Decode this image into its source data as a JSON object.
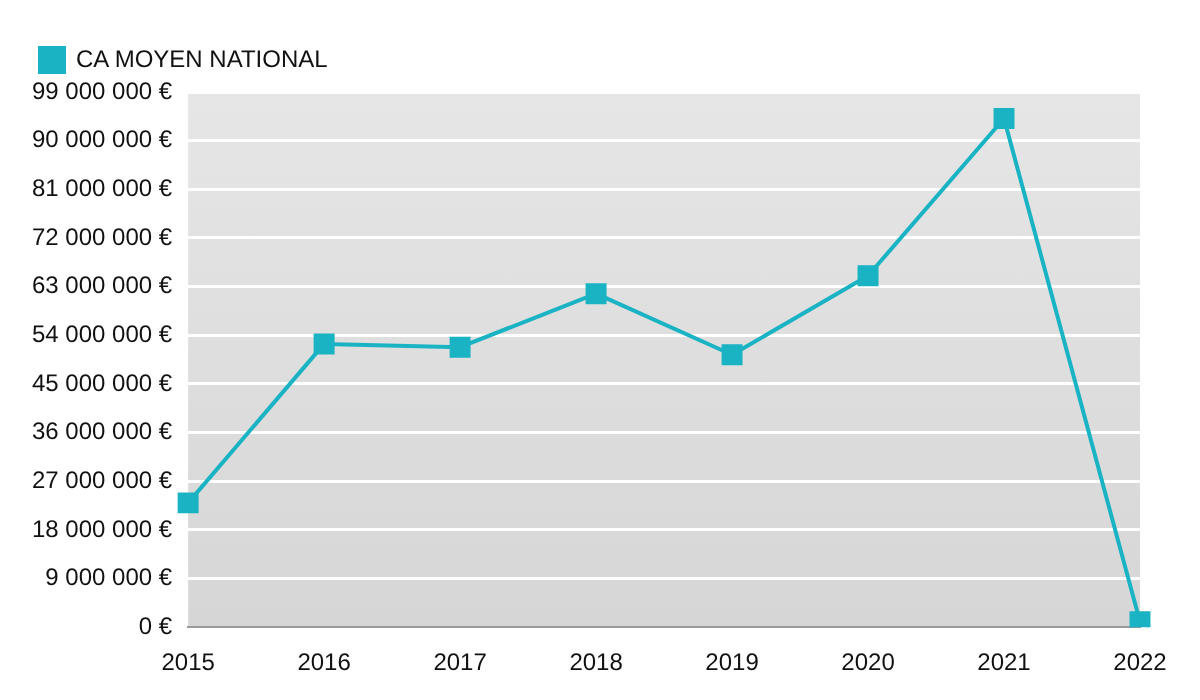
{
  "chart_data": {
    "type": "line",
    "categories": [
      "2015",
      "2016",
      "2017",
      "2018",
      "2019",
      "2020",
      "2021",
      "2022"
    ],
    "series": [
      {
        "name": "CA MOYEN NATIONAL",
        "color": "#1ab3c4",
        "values": [
          23000000,
          52400000,
          51800000,
          61700000,
          50400000,
          65000000,
          94100000,
          1000000
        ]
      }
    ],
    "ylim": [
      0,
      99000000
    ],
    "yticks": [
      {
        "value": 0,
        "label": "0 €"
      },
      {
        "value": 9000000,
        "label": "9 000 000 €"
      },
      {
        "value": 18000000,
        "label": "18 000 000 €"
      },
      {
        "value": 27000000,
        "label": "27 000 000 €"
      },
      {
        "value": 36000000,
        "label": "36 000 000 €"
      },
      {
        "value": 45000000,
        "label": "45 000 000 €"
      },
      {
        "value": 54000000,
        "label": "54 000 000 €"
      },
      {
        "value": 63000000,
        "label": "63 000 000 €"
      },
      {
        "value": 72000000,
        "label": "72 000 000 €"
      },
      {
        "value": 81000000,
        "label": "81 000 000 €"
      },
      {
        "value": 90000000,
        "label": "90 000 000 €"
      },
      {
        "value": 99000000,
        "label": "99 000 000 €"
      }
    ],
    "grid": "y",
    "legend": "top left",
    "marker": "square",
    "line_style": "solid"
  }
}
